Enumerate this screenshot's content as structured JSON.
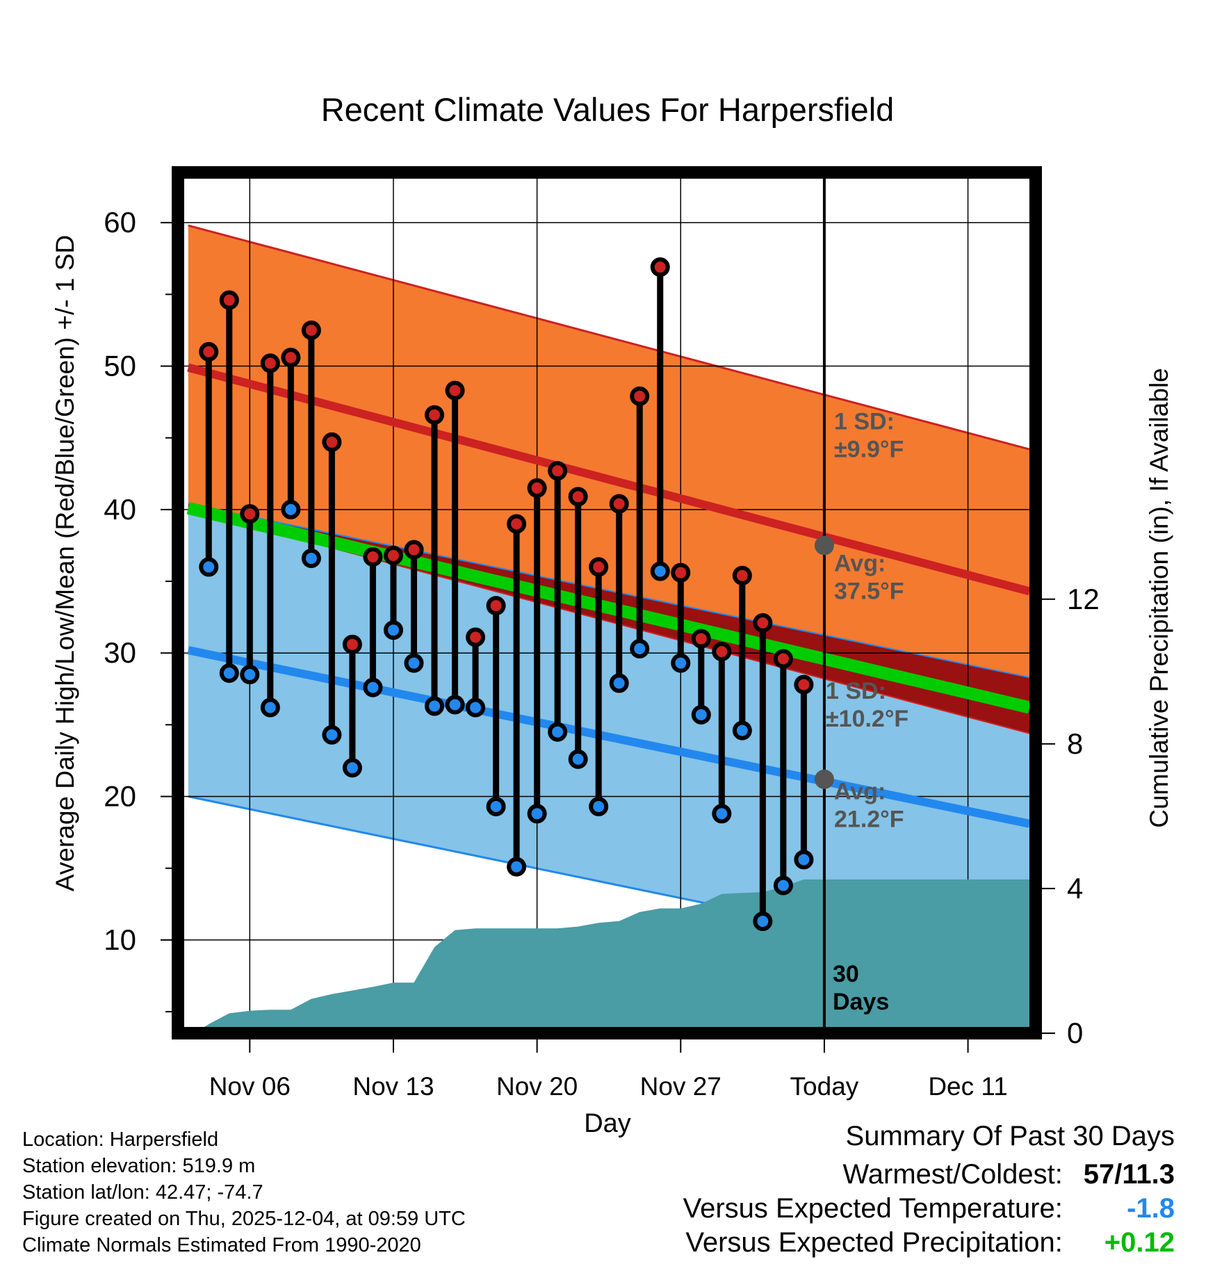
{
  "colors": {
    "high": "#cc2222",
    "low": "#2288ee",
    "mean": "#00cc00",
    "high_band": "#f47a30",
    "low_band": "#85c3e8",
    "overlap": "#991111",
    "precip": "#4a9ca5",
    "label_gray": "#555555",
    "neg": "#2288ee",
    "pos": "#00bb00"
  },
  "chart_data": {
    "type": "line",
    "title": "Recent Climate Values For Harpersfield",
    "xlabel": "Day",
    "ylabel": "Average Daily High/Low/Mean (Red/Blue/Green) +/- 1 SD",
    "y2label": "Cumulative Precipitation (in), If Available",
    "ylim": [
      3.5,
      63.5
    ],
    "y2lim": [
      0,
      23.8
    ],
    "xlim": [
      -0.5,
      41.3
    ],
    "x_ticks": [
      {
        "x": 3,
        "label": "Nov 06"
      },
      {
        "x": 10,
        "label": "Nov 13"
      },
      {
        "x": 17,
        "label": "Nov 20"
      },
      {
        "x": 24,
        "label": "Nov 27"
      },
      {
        "x": 31,
        "label": "Today"
      },
      {
        "x": 38,
        "label": "Dec 11"
      }
    ],
    "y_ticks": [
      10,
      20,
      30,
      40,
      50,
      60
    ],
    "y2_ticks": [
      0,
      4,
      8,
      12
    ],
    "today_x": 31,
    "normals_x": [
      0,
      41
    ],
    "avg_high": [
      49.9,
      34.3
    ],
    "avg_low": [
      30.2,
      18.1
    ],
    "avg_mean": [
      40.1,
      26.2
    ],
    "sd_high": 9.9,
    "sd_low": 10.2,
    "annotations": {
      "high_sd": "1 SD: ±9.9°F",
      "high_avg": "Avg: 37.5°F",
      "high_avg_value": 37.5,
      "low_sd": "1 SD: ±10.2°F",
      "low_avg": "Avg: 21.2°F",
      "low_avg_value": 21.2,
      "days_label": "30 Days"
    },
    "days": [
      1,
      2,
      3,
      4,
      5,
      6,
      7,
      8,
      9,
      10,
      11,
      12,
      13,
      14,
      15,
      16,
      17,
      18,
      19,
      20,
      21,
      22,
      23,
      24,
      25,
      26,
      27,
      28,
      29,
      30
    ],
    "high": [
      51.0,
      54.6,
      39.7,
      50.2,
      50.6,
      52.5,
      44.7,
      30.6,
      36.7,
      36.8,
      37.2,
      46.6,
      48.3,
      31.1,
      33.3,
      39.0,
      41.5,
      42.7,
      40.9,
      36.0,
      40.4,
      47.9,
      56.9,
      35.6,
      31.0,
      30.1,
      35.4,
      32.1,
      29.6,
      27.8
    ],
    "low": [
      36.0,
      28.6,
      28.5,
      26.2,
      40.0,
      36.6,
      24.3,
      22.0,
      27.6,
      31.6,
      29.3,
      26.3,
      26.4,
      26.2,
      19.3,
      15.1,
      18.8,
      24.5,
      22.6,
      19.3,
      27.9,
      30.3,
      35.7,
      29.3,
      25.7,
      18.8,
      24.6,
      11.3,
      13.8,
      15.6
    ],
    "precip_x": [
      0.3,
      1,
      2,
      3,
      4,
      5,
      6,
      7,
      8,
      9,
      10,
      11,
      12,
      13,
      14,
      15,
      16,
      17,
      18,
      19,
      20,
      21,
      22,
      23,
      24,
      25,
      26,
      27,
      28,
      29,
      30,
      41
    ],
    "precip_cum": [
      0.0,
      0.25,
      0.55,
      0.62,
      0.65,
      0.65,
      0.95,
      1.08,
      1.18,
      1.28,
      1.4,
      1.4,
      2.38,
      2.85,
      2.9,
      2.9,
      2.9,
      2.9,
      2.9,
      2.95,
      3.05,
      3.1,
      3.35,
      3.45,
      3.45,
      3.58,
      3.85,
      3.88,
      3.9,
      4.05,
      4.25,
      4.25
    ]
  },
  "info": {
    "location": "Location: Harpersfield",
    "elevation": "Station elevation: 519.9 m",
    "latlon": "Station lat/lon: 42.47; -74.7",
    "created": "Figure created on Thu, 2025-12-04, at 09:59 UTC",
    "normals": "Climate Normals Estimated From 1990-2020"
  },
  "summary": {
    "title": "Summary Of Past 30 Days",
    "warmest_label": "Warmest/Coldest:",
    "warmest_value": "57/11.3",
    "temp_label": "Versus Expected Temperature:",
    "temp_value": "-1.8",
    "precip_label": "Versus Expected Precipitation:",
    "precip_value": "+0.12"
  }
}
